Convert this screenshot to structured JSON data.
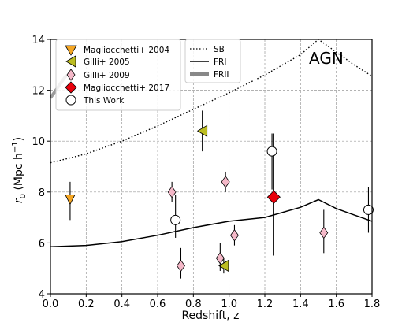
{
  "chart_data": {
    "type": "scatter",
    "title": "",
    "xlabel": "Redshift, z",
    "ylabel_main": "r",
    "ylabel_sub": "0",
    "ylabel_rest": " (Mpc h",
    "ylabel_sup": "−1",
    "ylabel_close": ")",
    "annotation": "AGN",
    "xlim": [
      0.0,
      1.8
    ],
    "ylim": [
      4,
      14
    ],
    "xticks": [
      0.0,
      0.2,
      0.4,
      0.6,
      0.8,
      1.0,
      1.2,
      1.4,
      1.6,
      1.8
    ],
    "xtick_labels": [
      "0.0",
      "0.2",
      "0.4",
      "0.6",
      "0.8",
      "1.0",
      "1.2",
      "1.4",
      "1.6",
      "1.8"
    ],
    "yticks": [
      4,
      6,
      8,
      10,
      12,
      14
    ],
    "ytick_labels": [
      "4",
      "6",
      "8",
      "10",
      "12",
      "14"
    ],
    "grid": true,
    "legend_points_placement": "top-left",
    "legend_lines_placement": "top-center",
    "series": [
      {
        "name": "Magliocchetti+ 2004",
        "marker": "triangle-down",
        "color": "#f5a623",
        "points": [
          {
            "x": 0.11,
            "y": 7.7,
            "ylo": 6.9,
            "yhi": 8.4
          }
        ]
      },
      {
        "name": "Gilli+ 2005",
        "marker": "triangle-left",
        "color": "#bcbd22",
        "points": [
          {
            "x": 0.85,
            "y": 10.4,
            "ylo": 9.6,
            "yhi": 11.2
          },
          {
            "x": 0.97,
            "y": 5.1,
            "ylo": 4.8,
            "yhi": 5.4
          }
        ]
      },
      {
        "name": "Gilli+ 2009",
        "marker": "thin-diamond",
        "color": "#f4b8c8",
        "points": [
          {
            "x": 0.68,
            "y": 8.0,
            "ylo": 7.6,
            "yhi": 8.4
          },
          {
            "x": 0.73,
            "y": 5.1,
            "ylo": 4.6,
            "yhi": 5.8
          },
          {
            "x": 0.95,
            "y": 5.4,
            "ylo": 4.9,
            "yhi": 6.0
          },
          {
            "x": 0.98,
            "y": 8.4,
            "ylo": 8.0,
            "yhi": 8.8
          },
          {
            "x": 1.03,
            "y": 6.3,
            "ylo": 5.9,
            "yhi": 6.7
          },
          {
            "x": 1.53,
            "y": 6.4,
            "ylo": 5.6,
            "yhi": 7.3
          }
        ]
      },
      {
        "name": "Magliocchetti+ 2017",
        "marker": "diamond",
        "color": "#e8000b",
        "points": [
          {
            "x": 1.25,
            "y": 7.8,
            "ylo": 5.5,
            "yhi": 10.3
          }
        ]
      },
      {
        "name": "This Work",
        "marker": "circle-open",
        "color": "#000000",
        "points": [
          {
            "x": 0.7,
            "y": 6.9,
            "ylo": 6.2,
            "yhi": 7.9
          },
          {
            "x": 1.24,
            "y": 9.6,
            "ylo": 8.1,
            "yhi": 10.3
          },
          {
            "x": 1.78,
            "y": 7.3,
            "ylo": 6.4,
            "yhi": 8.2
          }
        ]
      }
    ],
    "lines": [
      {
        "name": "SB",
        "style": "dotted",
        "color": "#000000",
        "x": [
          0.0,
          0.2,
          0.4,
          0.6,
          0.8,
          1.0,
          1.2,
          1.4,
          1.5,
          1.6,
          1.7,
          1.8
        ],
        "y": [
          9.15,
          9.5,
          10.0,
          10.6,
          11.25,
          11.9,
          12.6,
          13.4,
          14.0,
          13.5,
          13.0,
          12.55
        ]
      },
      {
        "name": "FRI",
        "style": "solid",
        "color": "#000000",
        "x": [
          0.0,
          0.2,
          0.4,
          0.6,
          0.8,
          1.0,
          1.2,
          1.4,
          1.5,
          1.6,
          1.7,
          1.8
        ],
        "y": [
          5.85,
          5.9,
          6.05,
          6.3,
          6.6,
          6.85,
          7.0,
          7.4,
          7.7,
          7.35,
          7.1,
          6.85
        ]
      },
      {
        "name": "FRII",
        "style": "thick",
        "color": "#888888",
        "x": [
          0.0,
          0.03,
          0.06,
          0.09
        ],
        "y": [
          11.7,
          12.0,
          12.3,
          12.6
        ]
      }
    ]
  }
}
